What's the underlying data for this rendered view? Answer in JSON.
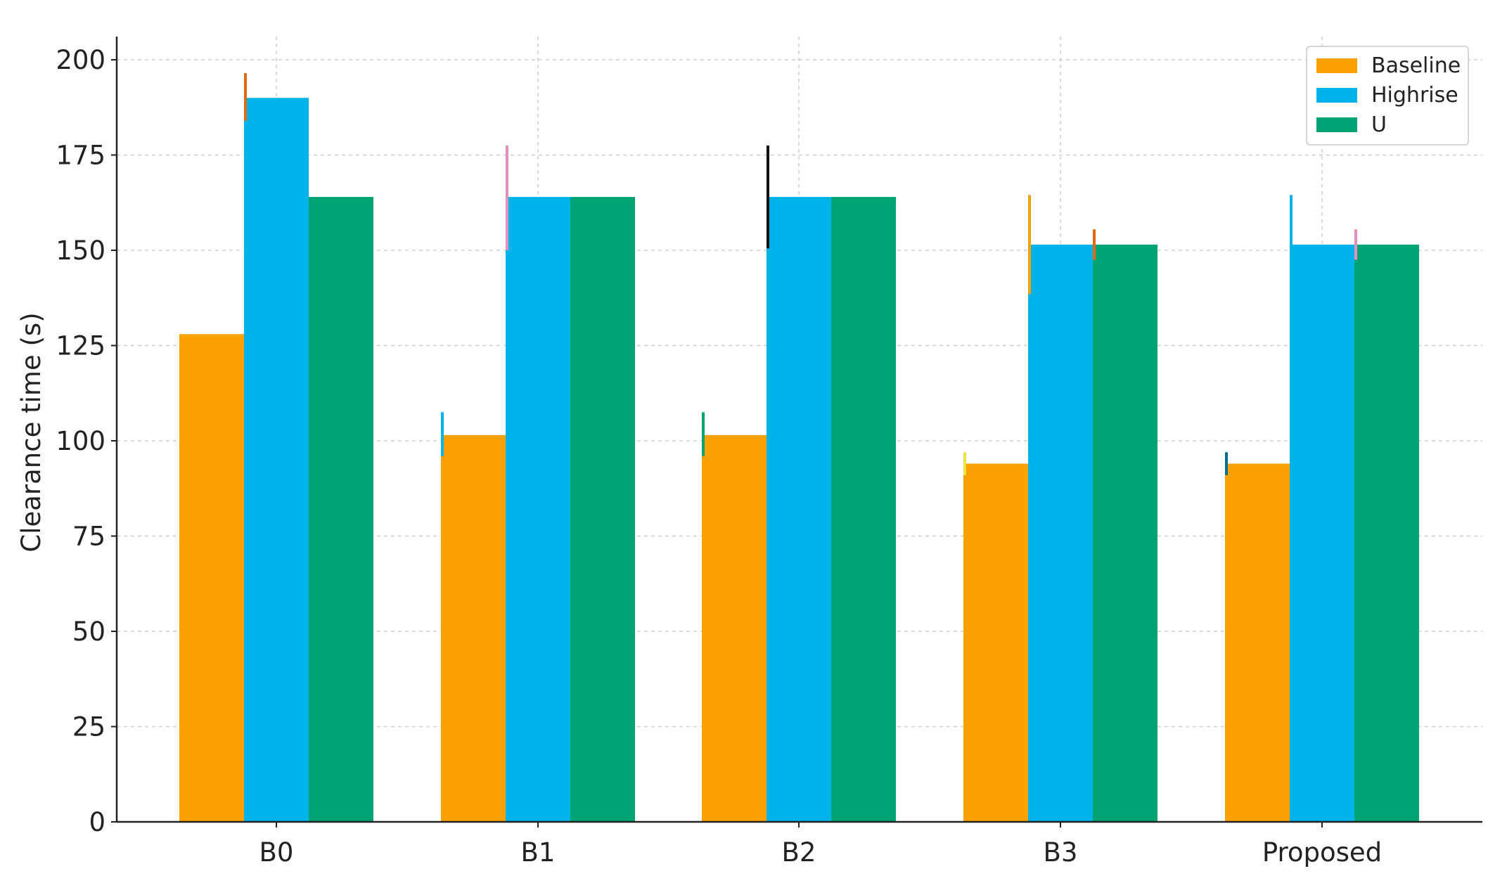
{
  "chart_data": {
    "type": "bar",
    "title": "",
    "xlabel": "",
    "ylabel": "Clearance time (s)",
    "ylim": [
      0,
      205
    ],
    "yticks": [
      0,
      25,
      50,
      75,
      100,
      125,
      150,
      175,
      200
    ],
    "grid": true,
    "legend_position": "top-right",
    "categories": [
      "B0",
      "B1",
      "B2",
      "B3",
      "Proposed"
    ],
    "series": [
      {
        "name": "Baseline",
        "color": "#F9A100",
        "values": [
          128,
          101.5,
          101.5,
          94,
          94
        ],
        "error_low": [
          128,
          96,
          96,
          91,
          91
        ],
        "error_high": [
          128,
          107.5,
          107.5,
          97,
          97
        ],
        "error_colors": [
          "#F9A100",
          "#00B3E8",
          "#00A372",
          "#F0E442",
          "#006E91"
        ]
      },
      {
        "name": "Highrise",
        "color": "#00B3E8",
        "values": [
          190,
          164,
          164,
          151.5,
          151.5
        ],
        "error_low": [
          184,
          150,
          150.5,
          138.5,
          151.5
        ],
        "error_high": [
          196.5,
          177.5,
          177.5,
          164.5,
          164.5
        ],
        "error_colors": [
          "#E06A12",
          "#E38FBF",
          "#111111",
          "#F9A100",
          "#00B3E8"
        ]
      },
      {
        "name": "U",
        "color": "#00A372",
        "values": [
          164,
          164,
          164,
          151.5,
          151.5
        ],
        "error_low": [
          164,
          164,
          164,
          147.5,
          147.5
        ],
        "error_high": [
          164,
          164,
          164,
          155.5,
          155.5
        ],
        "error_colors": [
          "#00A372",
          "#00A372",
          "#00A372",
          "#E06A12",
          "#E38FBF"
        ]
      }
    ]
  }
}
